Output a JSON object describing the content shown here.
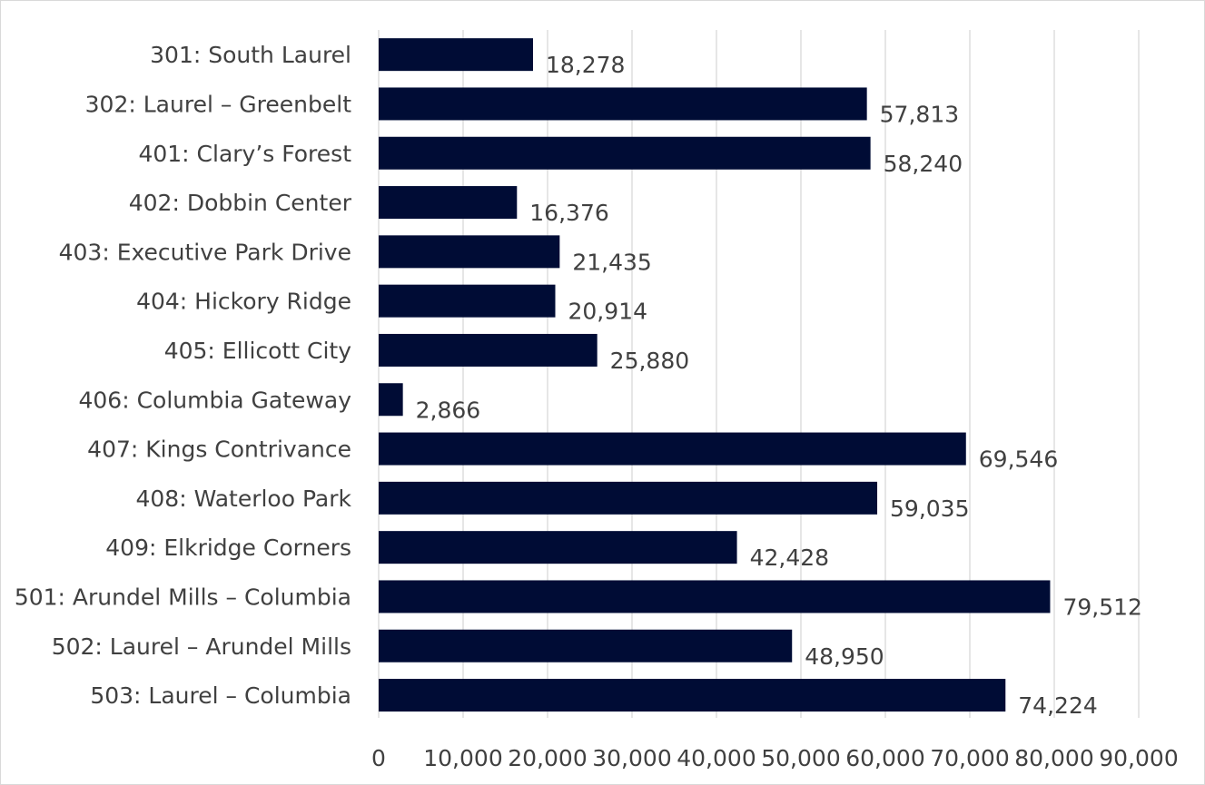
{
  "chart_data": {
    "type": "bar",
    "orientation": "horizontal",
    "categories": [
      "301: South Laurel",
      "302: Laurel – Greenbelt",
      "401: Clary’s Forest",
      "402: Dobbin Center",
      "403: Executive Park Drive",
      "404: Hickory Ridge",
      "405: Ellicott City",
      "406: Columbia Gateway",
      "407: Kings Contrivance",
      "408: Waterloo Park",
      "409: Elkridge Corners",
      "501: Arundel Mills – Columbia",
      "502: Laurel – Arundel Mills ",
      "503: Laurel – Columbia"
    ],
    "values": [
      18278,
      57813,
      58240,
      16376,
      21435,
      20914,
      25880,
      2866,
      69546,
      59035,
      42428,
      79512,
      48950,
      74224
    ],
    "data_labels": [
      "18,278",
      "57,813",
      "58,240",
      "16,376",
      "21,435",
      "20,914",
      "25,880",
      "2,866",
      "69,546",
      "59,035",
      "42,428",
      "79,512",
      "48,950",
      "74,224"
    ],
    "xlim": [
      0,
      90000
    ],
    "x_ticks": [
      0,
      10000,
      20000,
      30000,
      40000,
      50000,
      60000,
      70000,
      80000,
      90000
    ],
    "x_tick_labels": [
      "0",
      "10,000",
      "20,000",
      "30,000",
      "40,000",
      "50,000",
      "60,000",
      "70,000",
      "80,000",
      "90,000"
    ],
    "title": "",
    "xlabel": "",
    "ylabel": "",
    "grid": "vertical",
    "legend": "none",
    "colors": {
      "bar": "#000c35",
      "grid": "#d9d9d9",
      "text": "#404040"
    }
  }
}
